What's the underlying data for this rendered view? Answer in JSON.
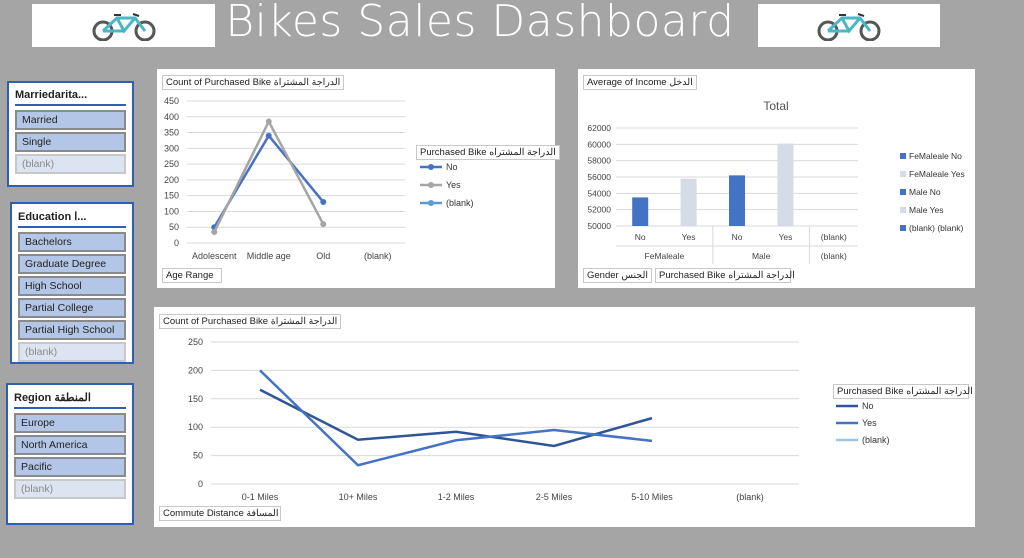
{
  "header": {
    "title": "Bikes Sales Dashboard",
    "logo_icon": "bicycle-icon"
  },
  "slicers": {
    "marital": {
      "title": "Marriedarita...",
      "items": [
        "Married",
        "Single",
        "(blank)"
      ]
    },
    "education": {
      "title": "Education ا...",
      "items": [
        "Bachelors",
        "Graduate Degree",
        "High School",
        "Partial College",
        "Partial High School",
        "(blank)"
      ]
    },
    "region": {
      "title": "Region المنطقة",
      "items": [
        "Europe",
        "North America",
        "Pacific",
        "(blank)"
      ]
    }
  },
  "chart_age": {
    "field": "Count of Purchased Bike الدراجة المشتراة",
    "axis_field": "Age Range",
    "legend_title": "Purchased Bike الدراجة المشتراه",
    "legend": [
      "No",
      "Yes",
      "(blank)"
    ]
  },
  "chart_income": {
    "field": "Average of Income الدخل",
    "axis_field_1": "Gender الجنس",
    "axis_field_2": "Purchased Bike الدراجة المشتراه",
    "legend": [
      "FeMaleale No",
      "FeMaleale Yes",
      "Male No",
      "Male Yes",
      "(blank) (blank)"
    ]
  },
  "chart_commute": {
    "field": "Count of Purchased Bike الدراجة المشتراة",
    "axis_field": "Commute Distance المسافة",
    "legend_title": "Purchased Bike الدراجة المشتراه",
    "legend": [
      "No",
      "Yes",
      "(blank)"
    ]
  },
  "colors": {
    "accent": "#2e5fb3",
    "slicer_item": "#b4c6e7",
    "no": "#4472c4",
    "yes": "#a5a5a5"
  },
  "chart_data": [
    {
      "type": "line",
      "categories": [
        "Adolescent",
        "Middle age",
        "Old",
        "(blank)"
      ],
      "series": [
        {
          "name": "No",
          "values": [
            50,
            340,
            130,
            null
          ]
        },
        {
          "name": "Yes",
          "values": [
            35,
            385,
            60,
            null
          ]
        },
        {
          "name": "(blank)",
          "values": [
            null,
            null,
            null,
            null
          ]
        }
      ],
      "ylim": [
        0,
        450
      ],
      "yticks": [
        0,
        50,
        100,
        150,
        200,
        250,
        300,
        350,
        400,
        450
      ],
      "grid": true,
      "legend": "right"
    },
    {
      "type": "bar",
      "title": "Total",
      "groups": [
        {
          "label": "FeMaleale",
          "categories": [
            "No",
            "Yes"
          ]
        },
        {
          "label": "Male",
          "categories": [
            "No",
            "Yes"
          ]
        },
        {
          "label": "(blank)",
          "categories": [
            "(blank)"
          ]
        }
      ],
      "values": [
        53500,
        55800,
        56200,
        60100,
        null
      ],
      "colors": [
        "#4472c4",
        "#d6dce5",
        "#4472c4",
        "#d6dce5",
        "#4472c4"
      ],
      "ylim": [
        50000,
        62000
      ],
      "yticks": [
        50000,
        52000,
        54000,
        56000,
        58000,
        60000,
        62000
      ],
      "grid": true,
      "legend": "right"
    },
    {
      "type": "line",
      "categories": [
        "0-1 Miles",
        "10+ Miles",
        "1-2 Miles",
        "2-5 Miles",
        "5-10 Miles",
        "(blank)"
      ],
      "series": [
        {
          "name": "No",
          "values": [
            166,
            78,
            92,
            67,
            116,
            null
          ]
        },
        {
          "name": "Yes",
          "values": [
            200,
            33,
            77,
            95,
            76,
            null
          ]
        },
        {
          "name": "(blank)",
          "values": [
            null,
            null,
            null,
            null,
            null,
            null
          ]
        }
      ],
      "ylim": [
        0,
        250
      ],
      "yticks": [
        0,
        50,
        100,
        150,
        200,
        250
      ],
      "grid": true,
      "legend": "right"
    }
  ]
}
